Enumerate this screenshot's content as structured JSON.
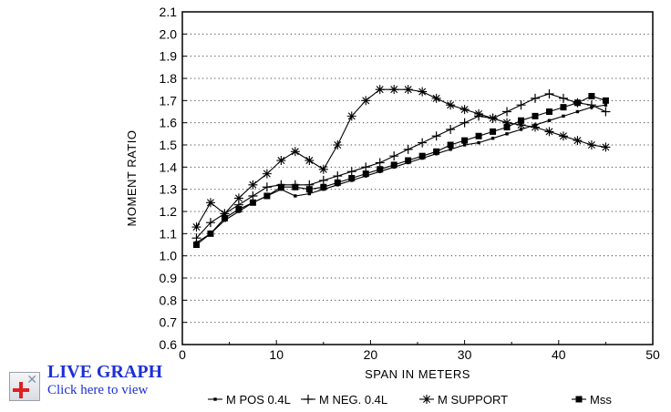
{
  "chart_data": {
    "type": "line",
    "xlabel": "SPAN IN METERS",
    "ylabel": "MOMENT  RATIO",
    "xlim": [
      0,
      50
    ],
    "ylim": [
      0.6,
      2.1
    ],
    "x_ticks": [
      "0",
      "10",
      "20",
      "30",
      "40",
      "50"
    ],
    "y_ticks": [
      "0.6",
      "0.7",
      "0.8",
      "0.9",
      "1.0",
      "1.1",
      "1.2",
      "1.3",
      "1.4",
      "1.5",
      "1.6",
      "1.7",
      "1.8",
      "1.9",
      "2.0",
      "2.1"
    ],
    "grid": "horizontal dotted",
    "legend_position": "bottom",
    "series": [
      {
        "name": "M POS 0.4L",
        "marker": "dot",
        "x": [
          1.5,
          3,
          4.5,
          6,
          7.5,
          9,
          10.5,
          12,
          13.5,
          15,
          16.5,
          18,
          19.5,
          21,
          22.5,
          24,
          25.5,
          27,
          28.5,
          30,
          31.5,
          33,
          34.5,
          36,
          37.5,
          39,
          40.5,
          42,
          43.5,
          45
        ],
        "values": [
          1.06,
          1.1,
          1.16,
          1.2,
          1.24,
          1.27,
          1.3,
          1.27,
          1.28,
          1.3,
          1.32,
          1.34,
          1.36,
          1.38,
          1.4,
          1.42,
          1.44,
          1.46,
          1.48,
          1.5,
          1.51,
          1.53,
          1.55,
          1.57,
          1.59,
          1.61,
          1.63,
          1.65,
          1.67,
          1.68
        ]
      },
      {
        "name": "M NEG. 0.4L",
        "marker": "plus",
        "x": [
          1.5,
          3,
          4.5,
          6,
          7.5,
          9,
          10.5,
          12,
          13.5,
          15,
          16.5,
          18,
          19.5,
          21,
          22.5,
          24,
          25.5,
          27,
          28.5,
          30,
          31.5,
          33,
          34.5,
          36,
          37.5,
          39,
          40.5,
          42,
          43.5,
          45
        ],
        "values": [
          1.08,
          1.15,
          1.19,
          1.23,
          1.27,
          1.31,
          1.32,
          1.32,
          1.32,
          1.34,
          1.36,
          1.38,
          1.4,
          1.42,
          1.45,
          1.48,
          1.51,
          1.54,
          1.57,
          1.6,
          1.63,
          1.62,
          1.65,
          1.68,
          1.71,
          1.73,
          1.71,
          1.69,
          1.68,
          1.65
        ]
      },
      {
        "name": "M SUPPORT",
        "marker": "asterisk",
        "x": [
          1.5,
          3,
          4.5,
          6,
          7.5,
          9,
          10.5,
          12,
          13.5,
          15,
          16.5,
          18,
          19.5,
          21,
          22.5,
          24,
          25.5,
          27,
          28.5,
          30,
          31.5,
          33,
          34.5,
          36,
          37.5,
          39,
          40.5,
          42,
          43.5,
          45
        ],
        "values": [
          1.13,
          1.24,
          1.19,
          1.26,
          1.32,
          1.37,
          1.43,
          1.47,
          1.43,
          1.39,
          1.5,
          1.63,
          1.7,
          1.75,
          1.75,
          1.75,
          1.74,
          1.71,
          1.68,
          1.66,
          1.64,
          1.62,
          1.6,
          1.59,
          1.58,
          1.56,
          1.54,
          1.52,
          1.5,
          1.49
        ]
      },
      {
        "name": "Mss",
        "marker": "square",
        "x": [
          1.5,
          3,
          4.5,
          6,
          7.5,
          9,
          10.5,
          12,
          13.5,
          15,
          16.5,
          18,
          19.5,
          21,
          22.5,
          24,
          25.5,
          27,
          28.5,
          30,
          31.5,
          33,
          34.5,
          36,
          37.5,
          39,
          40.5,
          42,
          43.5,
          45
        ],
        "values": [
          1.05,
          1.1,
          1.17,
          1.21,
          1.24,
          1.27,
          1.31,
          1.31,
          1.3,
          1.31,
          1.33,
          1.35,
          1.37,
          1.39,
          1.41,
          1.43,
          1.45,
          1.47,
          1.5,
          1.52,
          1.54,
          1.56,
          1.58,
          1.61,
          1.63,
          1.65,
          1.67,
          1.69,
          1.72,
          1.7
        ]
      }
    ]
  },
  "live_graph": {
    "title": "LIVE GRAPH",
    "subtitle": "Click here to view"
  }
}
